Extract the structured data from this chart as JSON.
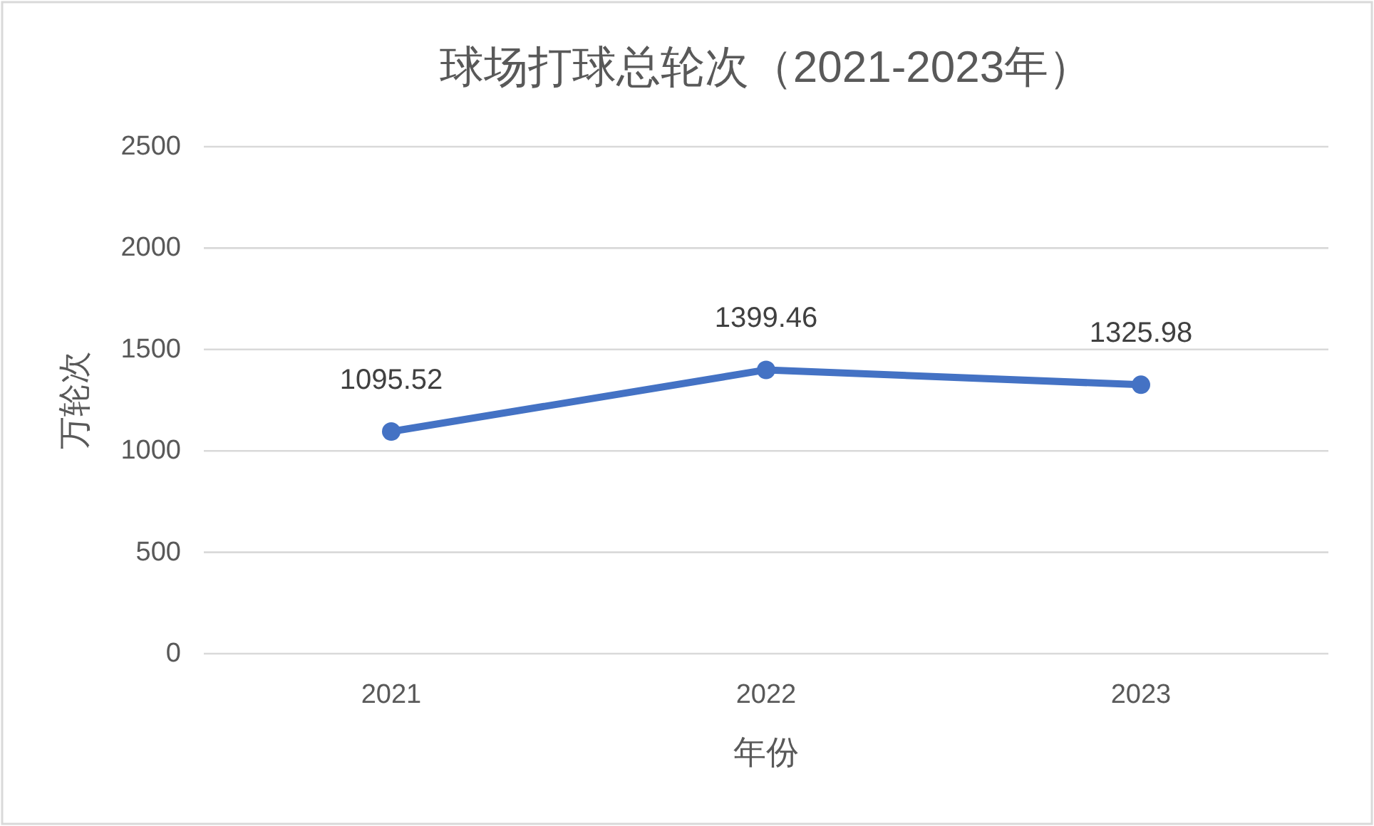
{
  "chart_data": {
    "type": "line",
    "title": "球场打球总轮次（2021-2023年）",
    "xlabel": "年份",
    "ylabel": "万轮次",
    "categories": [
      "2021",
      "2022",
      "2023"
    ],
    "series": [
      {
        "color": "#4472c4",
        "values": [
          1095.52,
          1399.46,
          1325.98
        ]
      }
    ],
    "ylim": [
      0,
      2500
    ],
    "yticks": [
      0,
      500,
      1000,
      1500,
      2000,
      2500
    ],
    "grid": "y",
    "marker": "circle",
    "data_labels": true
  }
}
